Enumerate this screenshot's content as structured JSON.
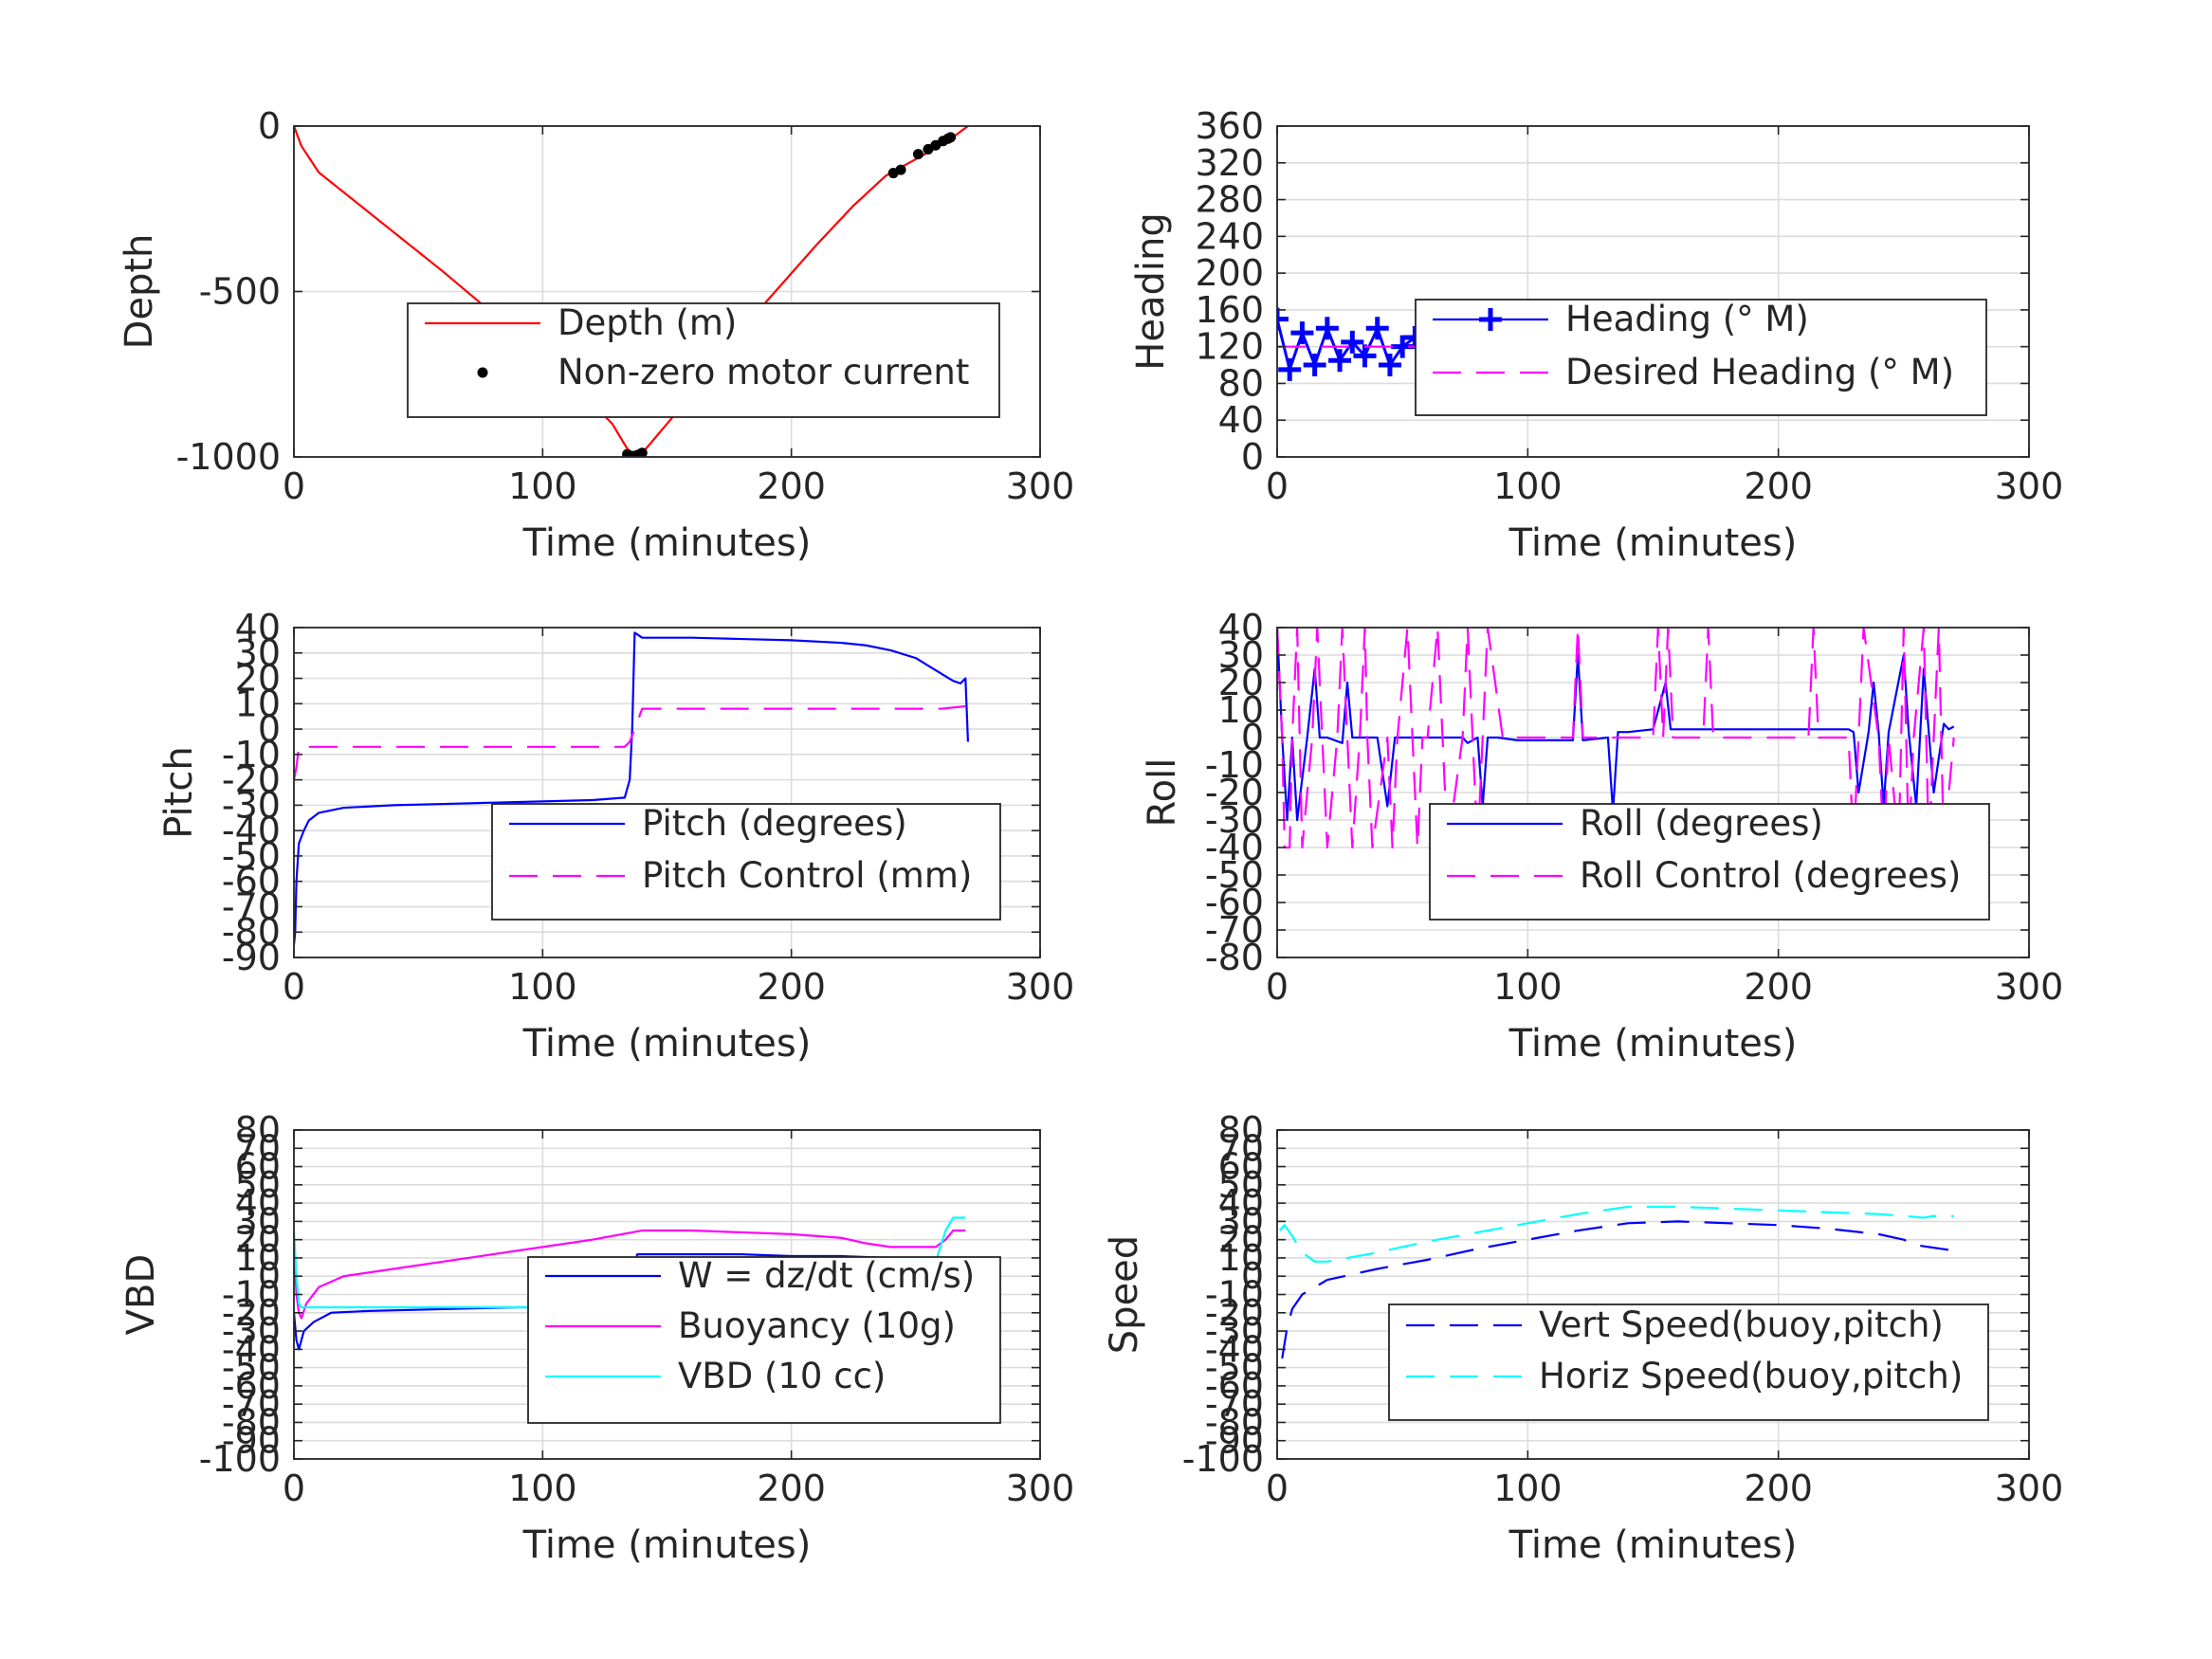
{
  "chart_data": [
    {
      "type": "line",
      "panel": "depth",
      "xlabel": "Time (minutes)",
      "ylabel": "Depth",
      "xlim": [
        0,
        300
      ],
      "ylim": [
        -1000,
        0
      ],
      "xticks": [
        0,
        100,
        200,
        300
      ],
      "yticks": [
        -1000,
        -500,
        0
      ],
      "grid": true,
      "legend_location": "lower-right",
      "series": [
        {
          "name": "Depth (m)",
          "color": "#ff0000",
          "style": "solid",
          "x": [
            0,
            3,
            10,
            30,
            60,
            90,
            115,
            128,
            134,
            137,
            139,
            141,
            150,
            170,
            190,
            210,
            225,
            238,
            250,
            262,
            271
          ],
          "y": [
            0,
            -60,
            -140,
            -260,
            -440,
            -630,
            -800,
            -900,
            -975,
            -997,
            -993,
            -980,
            -900,
            -720,
            -530,
            -360,
            -240,
            -150,
            -100,
            -50,
            0
          ]
        },
        {
          "name": "Non-zero motor current",
          "color": "#000000",
          "style": "points",
          "x": [
            134,
            135,
            136,
            137,
            138,
            139,
            140,
            241,
            244,
            251,
            255,
            258,
            261,
            263,
            264
          ],
          "y": [
            -992,
            -996,
            -998,
            -997,
            -995,
            -992,
            -988,
            -142,
            -132,
            -85,
            -70,
            -58,
            -45,
            -38,
            -34
          ]
        }
      ]
    },
    {
      "type": "line",
      "panel": "heading",
      "xlabel": "Time (minutes)",
      "ylabel": "Heading",
      "xlim": [
        0,
        300
      ],
      "ylim": [
        0,
        360
      ],
      "xticks": [
        0,
        100,
        200,
        300
      ],
      "yticks": [
        0,
        40,
        80,
        120,
        160,
        200,
        240,
        280,
        320,
        360
      ],
      "grid": true,
      "legend_location": "center-right",
      "series": [
        {
          "name": "Heading (° M)",
          "color": "#0000ff",
          "style": "plus-markers",
          "x": [
            0,
            5,
            10,
            15,
            20,
            25,
            30,
            35,
            40,
            45,
            50,
            55,
            60,
            65,
            70,
            75,
            80,
            85,
            90,
            95,
            100,
            105,
            110,
            115,
            120,
            125,
            130,
            135,
            140,
            145,
            150,
            155,
            160,
            165,
            170,
            175,
            180,
            185,
            190,
            195,
            200,
            205,
            210,
            215,
            220,
            225,
            230,
            235,
            240,
            245,
            250,
            255,
            260,
            265,
            270
          ],
          "y": [
            150,
            95,
            135,
            100,
            140,
            105,
            125,
            110,
            140,
            100,
            120,
            130,
            115,
            100,
            125,
            110,
            135,
            105,
            120,
            115,
            110,
            125,
            115,
            120,
            130,
            110,
            120,
            125,
            112,
            118,
            128,
            112,
            122,
            115,
            126,
            110,
            121,
            117,
            124,
            113,
            120,
            128,
            112,
            119,
            126,
            108,
            145,
            100,
            132,
            95,
            150,
            105,
            140,
            100,
            120
          ]
        },
        {
          "name": "Desired Heading (° M)",
          "color": "#ff00ff",
          "style": "dashed",
          "x": [
            0,
            270
          ],
          "y": [
            120,
            120
          ]
        }
      ]
    },
    {
      "type": "line",
      "panel": "pitch",
      "xlabel": "Time (minutes)",
      "ylabel": "Pitch",
      "xlim": [
        0,
        300
      ],
      "ylim": [
        -90,
        40
      ],
      "xticks": [
        0,
        100,
        200,
        300
      ],
      "yticks": [
        -90,
        -80,
        -70,
        -60,
        -50,
        -40,
        -30,
        -20,
        -10,
        0,
        10,
        20,
        30,
        40
      ],
      "grid": true,
      "legend_location": "lower-right",
      "series": [
        {
          "name": "Pitch (degrees)",
          "color": "#0000ff",
          "style": "solid",
          "x": [
            0,
            0.5,
            1,
            2,
            4,
            6,
            10,
            20,
            40,
            60,
            80,
            100,
            120,
            133,
            135,
            136,
            137,
            140,
            160,
            180,
            200,
            220,
            230,
            240,
            250,
            255,
            260,
            265,
            268,
            270,
            271
          ],
          "y": [
            -85,
            -80,
            -60,
            -45,
            -40,
            -36,
            -33,
            -31,
            -30,
            -29.5,
            -29,
            -28.5,
            -28,
            -27,
            -20,
            0,
            38,
            36,
            36,
            35.5,
            35,
            34,
            33,
            31,
            28,
            25,
            22,
            19,
            18,
            20,
            -5
          ]
        },
        {
          "name": "Pitch Control (mm)",
          "color": "#ff00ff",
          "style": "dashed",
          "x": [
            0,
            1,
            2,
            10,
            40,
            80,
            120,
            133,
            135,
            137,
            140,
            180,
            220,
            260,
            270
          ],
          "y": [
            -20,
            -15,
            -7,
            -7,
            -7,
            -7,
            -7,
            -7,
            -5,
            0,
            8,
            8,
            8,
            8,
            9
          ]
        }
      ]
    },
    {
      "type": "line",
      "panel": "roll",
      "xlabel": "Time (minutes)",
      "ylabel": "Roll",
      "xlim": [
        0,
        300
      ],
      "ylim": [
        -80,
        40
      ],
      "xticks": [
        0,
        100,
        200,
        300
      ],
      "yticks": [
        -80,
        -70,
        -60,
        -50,
        -40,
        -30,
        -20,
        -10,
        0,
        10,
        20,
        30,
        40
      ],
      "grid": true,
      "legend_location": "lower-right",
      "series": [
        {
          "name": "Roll (degrees)",
          "color": "#0000ff",
          "style": "solid",
          "x": [
            0,
            2,
            4,
            6,
            8,
            12,
            15,
            17,
            20,
            26,
            28,
            30,
            35,
            40,
            44,
            47,
            50,
            60,
            74,
            76,
            80,
            82,
            84,
            88,
            96,
            100,
            110,
            118,
            120,
            122,
            132,
            134,
            136,
            140,
            150,
            155,
            157,
            160,
            170,
            180,
            200,
            220,
            228,
            230,
            232,
            236,
            238,
            240,
            242,
            244,
            250,
            252,
            255,
            258,
            260,
            262,
            266,
            268,
            270
          ],
          "y": [
            40,
            0,
            -30,
            0,
            -30,
            0,
            25,
            0,
            0,
            -2,
            20,
            0,
            0,
            0,
            -25,
            0,
            0,
            0,
            0,
            -2,
            0,
            -25,
            0,
            0,
            -1,
            -1,
            -1,
            -1,
            30,
            -1,
            0,
            -27,
            2,
            2,
            3,
            20,
            3,
            3,
            3,
            3,
            3,
            3,
            3,
            2,
            -20,
            2,
            20,
            2,
            -25,
            2,
            30,
            2,
            -25,
            25,
            2,
            -20,
            5,
            3,
            4
          ]
        },
        {
          "name": "Roll Control (degrees)",
          "color": "#ff00ff",
          "style": "dashed",
          "x": [
            0,
            2,
            3,
            5,
            6,
            8,
            10,
            14,
            16,
            18,
            20,
            24,
            26,
            28,
            30,
            33,
            35,
            36,
            38,
            44,
            46,
            48,
            52,
            54,
            56,
            58,
            60,
            64,
            66,
            68,
            74,
            76,
            78,
            80,
            82,
            84,
            90,
            96,
            100,
            110,
            118,
            120,
            122,
            130,
            134,
            136,
            140,
            150,
            152,
            154,
            156,
            158,
            160,
            170,
            172,
            174,
            180,
            200,
            212,
            214,
            216,
            220,
            228,
            230,
            232,
            234,
            240,
            242,
            244,
            248,
            250,
            252,
            254,
            258,
            260,
            262,
            264,
            266,
            270
          ],
          "y": [
            40,
            0,
            -40,
            -40,
            0,
            40,
            -40,
            0,
            40,
            0,
            -40,
            0,
            40,
            0,
            -40,
            0,
            40,
            0,
            -40,
            0,
            -40,
            0,
            40,
            0,
            -40,
            0,
            0,
            40,
            0,
            -40,
            0,
            40,
            0,
            -40,
            0,
            40,
            0,
            0,
            0,
            0,
            0,
            40,
            0,
            0,
            0,
            0,
            0,
            0,
            40,
            0,
            40,
            0,
            0,
            0,
            40,
            0,
            0,
            0,
            0,
            40,
            0,
            0,
            0,
            -40,
            0,
            40,
            0,
            -40,
            0,
            -40,
            40,
            -40,
            0,
            40,
            -40,
            0,
            40,
            -40,
            0
          ]
        }
      ]
    },
    {
      "type": "line",
      "panel": "vbd",
      "xlabel": "Time (minutes)",
      "ylabel": "VBD",
      "xlim": [
        0,
        300
      ],
      "ylim": [
        -100,
        80
      ],
      "xticks": [
        0,
        100,
        200,
        300
      ],
      "yticks": [
        -100,
        -90,
        -80,
        -70,
        -60,
        -50,
        -40,
        -30,
        -20,
        -10,
        0,
        10,
        20,
        30,
        40,
        50,
        60,
        70,
        80
      ],
      "grid": true,
      "legend_location": "lower-right",
      "series": [
        {
          "name": "W = dz/dt (cm/s)",
          "color": "#0000ff",
          "style": "solid",
          "x": [
            0,
            1,
            2,
            4,
            8,
            15,
            30,
            60,
            90,
            120,
            134,
            136,
            138,
            140,
            160,
            180,
            200,
            220,
            240,
            255,
            262,
            268,
            270,
            271
          ],
          "y": [
            -20,
            -35,
            -40,
            -30,
            -25,
            -20,
            -19,
            -18,
            -17,
            -17,
            -16,
            -10,
            12,
            12,
            12,
            12,
            11,
            11,
            10,
            9,
            8,
            7,
            5,
            0
          ]
        },
        {
          "name": "Buoyancy (10g)",
          "color": "#ff00ff",
          "style": "solid",
          "x": [
            0,
            1,
            2,
            3,
            5,
            10,
            20,
            40,
            60,
            80,
            100,
            120,
            140,
            160,
            180,
            200,
            220,
            230,
            240,
            250,
            258,
            262,
            265,
            270
          ],
          "y": [
            20,
            -10,
            -20,
            -23,
            -15,
            -6,
            0,
            4,
            8,
            12,
            16,
            20,
            25,
            25,
            24,
            23,
            21,
            18,
            16,
            16,
            16,
            20,
            25,
            25
          ]
        },
        {
          "name": "VBD (10 cc)",
          "color": "#00ffff",
          "style": "solid",
          "x": [
            0,
            1,
            2,
            3,
            5,
            10,
            40,
            80,
            120,
            134,
            136,
            137,
            139,
            160,
            200,
            240,
            258,
            262,
            265,
            270
          ],
          "y": [
            25,
            0,
            -15,
            -17,
            -17,
            -17,
            -17,
            -17,
            -17,
            -17,
            -5,
            8,
            8,
            8,
            8,
            8,
            8,
            25,
            32,
            32
          ]
        }
      ]
    },
    {
      "type": "line",
      "panel": "speed",
      "xlabel": "Time (minutes)",
      "ylabel": "Speed",
      "xlim": [
        0,
        300
      ],
      "ylim": [
        -100,
        80
      ],
      "xticks": [
        0,
        100,
        200,
        300
      ],
      "yticks": [
        -100,
        -90,
        -80,
        -70,
        -60,
        -50,
        -40,
        -30,
        -20,
        -10,
        0,
        10,
        20,
        30,
        40,
        50,
        60,
        70,
        80
      ],
      "grid": true,
      "legend_location": "lower-right",
      "series": [
        {
          "name": "Vert Speed(buoy,pitch)",
          "color": "#0000ff",
          "style": "dashed",
          "x": [
            2,
            4,
            6,
            10,
            20,
            40,
            60,
            80,
            100,
            120,
            140,
            160,
            180,
            200,
            220,
            240,
            250,
            255,
            260,
            265,
            270
          ],
          "y": [
            -45,
            -28,
            -18,
            -10,
            -2,
            4,
            9,
            15,
            20,
            25,
            29,
            30,
            29,
            28,
            26,
            23,
            20,
            17,
            16,
            15,
            14
          ]
        },
        {
          "name": "Horiz Speed(buoy,pitch)",
          "color": "#00ffff",
          "style": "dashed",
          "x": [
            1,
            3,
            6,
            10,
            15,
            20,
            40,
            60,
            80,
            100,
            120,
            140,
            160,
            180,
            200,
            220,
            240,
            250,
            258,
            262,
            266,
            270
          ],
          "y": [
            25,
            28,
            22,
            13,
            8,
            8,
            13,
            19,
            24,
            29,
            34,
            38,
            38,
            37,
            36,
            35,
            34,
            33,
            32,
            33,
            32,
            33
          ]
        }
      ]
    }
  ]
}
